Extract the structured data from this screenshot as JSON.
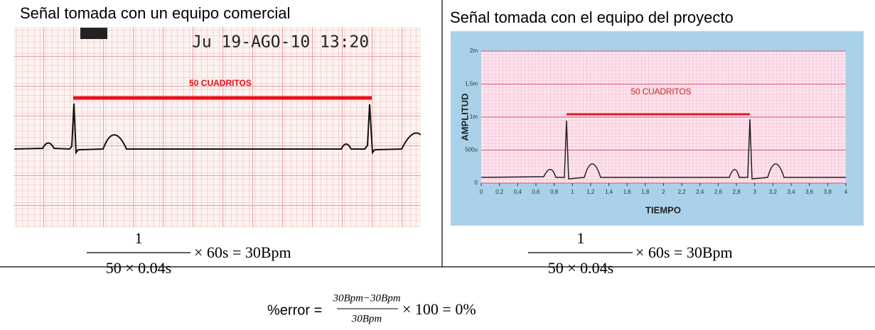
{
  "left_panel": {
    "title": "Señal tomada con un equipo comercial",
    "timestamp": "Ju 19-AGO-10 13:20",
    "annotation": "50 CUADRITOS",
    "formula": {
      "numerator": "1",
      "denominator": "50 × 0.04s",
      "rest": "× 60s = 30Bpm"
    }
  },
  "right_panel": {
    "title": "Señal tomada con el equipo del proyecto",
    "plot": {
      "annotation": "50 CUADRITOS",
      "y_label": "AMPLITUD",
      "x_label": "TIEMPO",
      "ylim": [
        0,
        0.002
      ],
      "xlim": [
        0,
        4
      ],
      "yticks": [
        0,
        {
          "value": 0.0005,
          "label": "500u"
        },
        {
          "value": 0.001,
          "label": "1m"
        },
        {
          "value": 0.0015,
          "label": "1,5m"
        },
        {
          "value": 0.002,
          "label": "2m"
        }
      ],
      "xticks": [
        0,
        {
          "value": 0.2,
          "label": "0,2"
        },
        {
          "value": 0.4,
          "label": "0,4"
        },
        {
          "value": 0.6,
          "label": "0,6"
        },
        {
          "value": 0.8,
          "label": "0,8"
        },
        1,
        {
          "value": 1.2,
          "label": "1,2"
        },
        {
          "value": 1.4,
          "label": "1,4"
        },
        {
          "value": 1.6,
          "label": "1,6"
        },
        {
          "value": 1.8,
          "label": "1,8"
        },
        2,
        {
          "value": 2.2,
          "label": "2,2"
        },
        {
          "value": 2.4,
          "label": "2,4"
        },
        {
          "value": 2.6,
          "label": "2,6"
        },
        {
          "value": 2.8,
          "label": "2,8"
        },
        3,
        {
          "value": 3.2,
          "label": "3,2"
        },
        {
          "value": 3.4,
          "label": "3,4"
        },
        {
          "value": 3.6,
          "label": "3,6"
        },
        {
          "value": 3.8,
          "label": "3,8"
        },
        4
      ]
    },
    "formula": {
      "numerator": "1",
      "denominator": "50 × 0.04s",
      "rest": "× 60s = 30Bpm"
    }
  },
  "error_formula": {
    "lhs": "%error =",
    "numerator": "30Bpm−30Bpm",
    "denominator": "30Bpm",
    "rest": "× 100 = 0%"
  }
}
